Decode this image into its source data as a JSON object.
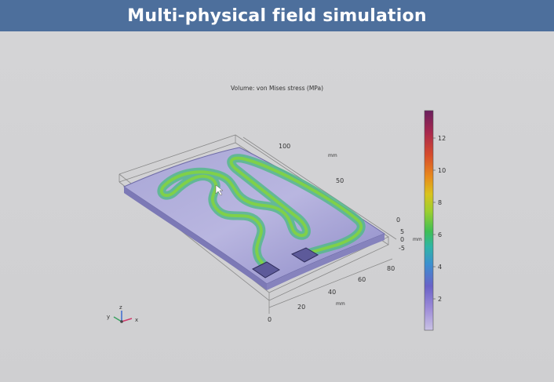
{
  "banner": {
    "title": "Multi-physical field simulation"
  },
  "plot": {
    "title": "Volume: von Mises stress (MPa)",
    "colorbar": {
      "ticks": [
        "12",
        "10",
        "8",
        "6",
        "4",
        "2"
      ],
      "colors": [
        "#6a1f5e",
        "#a8284e",
        "#d64b2c",
        "#e88a1c",
        "#d9c31d",
        "#9bcf2f",
        "#3fbf55",
        "#2fb5a6",
        "#3c8fd0",
        "#6a62c8",
        "#9d8bd8",
        "#c9c2e4"
      ]
    },
    "axes": {
      "y_ticks": [
        "100",
        "50",
        "0"
      ],
      "y_unit": "mm",
      "z_ticks": [
        "5",
        "0",
        "-5"
      ],
      "z_unit": "mm",
      "x_ticks": [
        "80",
        "60",
        "40",
        "20",
        "0"
      ],
      "x_unit": "mm"
    },
    "triad": {
      "z": "z",
      "y": "y",
      "x": "x"
    }
  }
}
